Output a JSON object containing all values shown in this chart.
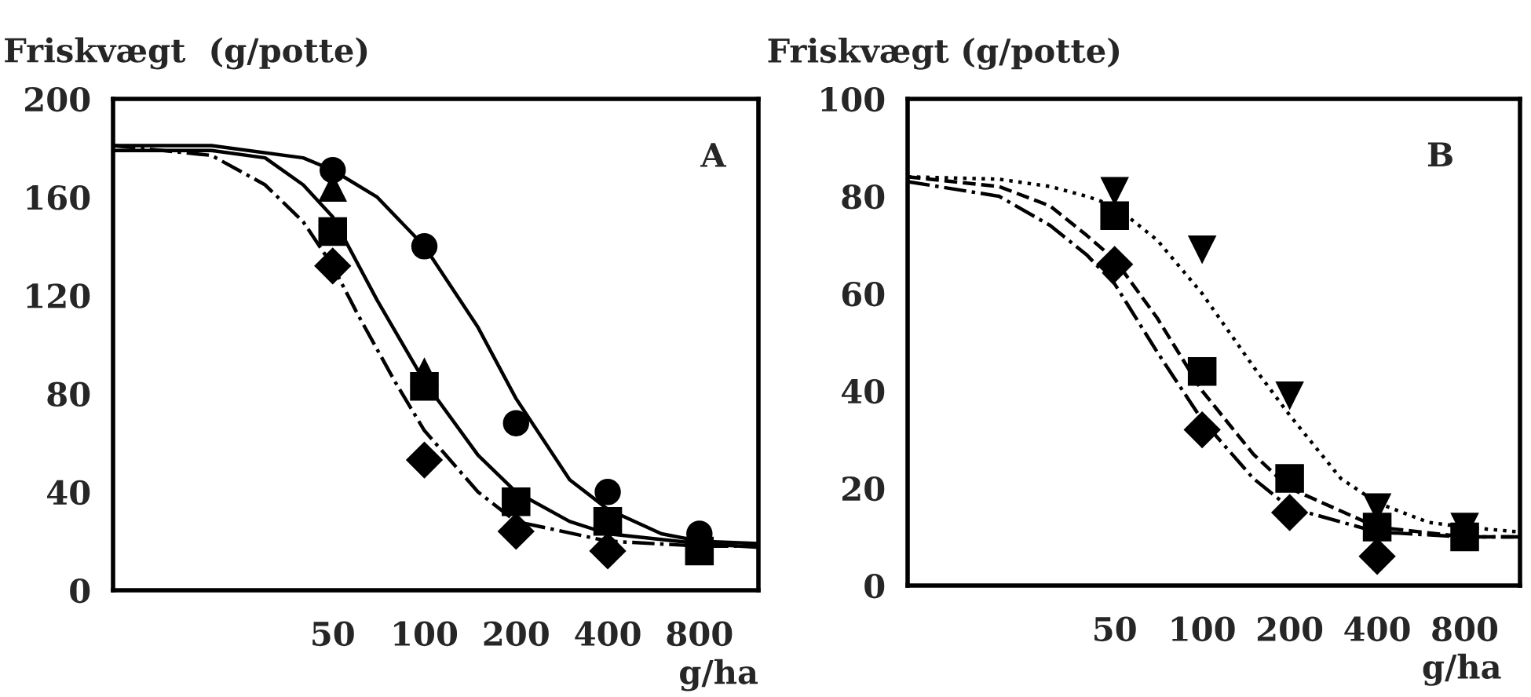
{
  "chart_data": [
    {
      "type": "scatter",
      "ylabel": "Friskvægt  (g/potte)",
      "xlabel": "g/ha",
      "annotations": [
        "A"
      ],
      "log": "x",
      "xlim": [
        9.5,
        1250
      ],
      "xticks": [
        50,
        100,
        200,
        400,
        800
      ],
      "ylim": [
        0,
        200
      ],
      "yticks": [
        0,
        40,
        80,
        120,
        160,
        200
      ],
      "grid": false,
      "legend": false,
      "series": [
        {
          "type": "line",
          "line_style": "solid",
          "marker": "none",
          "color": "#000000",
          "x": [
            9.5,
            20,
            40,
            50,
            70,
            100,
            150,
            200,
            300,
            400,
            600,
            800,
            1250
          ],
          "values": [
            181,
            181,
            176,
            171,
            160,
            140,
            107,
            78,
            45,
            33,
            23,
            20,
            19
          ]
        },
        {
          "type": "line",
          "line_style": "solid",
          "marker": "none",
          "color": "#000000",
          "x": [
            9.5,
            20,
            30,
            40,
            50,
            70,
            100,
            150,
            200,
            300,
            400,
            800,
            1250
          ],
          "values": [
            179,
            179,
            176,
            165,
            152,
            118,
            85,
            55,
            40,
            28,
            23,
            19,
            17.5
          ]
        },
        {
          "type": "line",
          "line_style": "dashdot",
          "marker": "none",
          "color": "#000000",
          "x": [
            9.5,
            20,
            30,
            40,
            50,
            60,
            80,
            100,
            150,
            200,
            400,
            800,
            1250
          ],
          "values": [
            181,
            177,
            165,
            150,
            132,
            113,
            85,
            65,
            40,
            28,
            20,
            18,
            18
          ]
        },
        {
          "marker": "circle",
          "color": "#000000",
          "x": [
            50,
            100,
            200,
            400,
            800
          ],
          "values": [
            171,
            140,
            68,
            40,
            23
          ]
        },
        {
          "marker": "triangle",
          "color": "#000000",
          "x": [
            50,
            100
          ],
          "values": [
            164,
            89
          ]
        },
        {
          "marker": "square",
          "color": "#000000",
          "x": [
            50,
            100,
            200,
            400,
            800
          ],
          "values": [
            146,
            83,
            36,
            28,
            16
          ]
        },
        {
          "marker": "diamond",
          "color": "#000000",
          "x": [
            50,
            100,
            200,
            400
          ],
          "values": [
            132,
            53,
            24,
            16
          ]
        }
      ]
    },
    {
      "type": "scatter",
      "ylabel": "Friskvægt (g/potte)",
      "xlabel": "g/ha",
      "annotations": [
        "B"
      ],
      "log": "x",
      "xlim": [
        9.7,
        1240
      ],
      "xticks": [
        50,
        100,
        200,
        400,
        800
      ],
      "ylim": [
        0,
        100
      ],
      "yticks": [
        0,
        20,
        40,
        60,
        80,
        100
      ],
      "grid": false,
      "legend": false,
      "series": [
        {
          "type": "line",
          "line_style": "dotted",
          "marker": "none",
          "color": "#000000",
          "x": [
            9.7,
            20,
            30,
            40,
            50,
            70,
            100,
            150,
            200,
            300,
            400,
            600,
            800,
            1240
          ],
          "values": [
            84,
            83.5,
            82,
            80,
            78,
            71,
            60,
            45,
            35,
            22,
            17,
            13,
            12,
            11
          ]
        },
        {
          "type": "line",
          "line_style": "dashed",
          "marker": "none",
          "color": "#000000",
          "x": [
            9.7,
            20,
            30,
            40,
            50,
            70,
            100,
            150,
            200,
            400,
            800,
            1240
          ],
          "values": [
            84,
            82,
            78,
            72,
            67,
            55,
            40,
            27,
            20,
            12,
            10,
            10
          ]
        },
        {
          "type": "line",
          "line_style": "dashdot",
          "marker": "none",
          "color": "#000000",
          "x": [
            9.7,
            20,
            30,
            40,
            50,
            70,
            100,
            150,
            200,
            400,
            800,
            1240
          ],
          "values": [
            83,
            80,
            74,
            68,
            62,
            48,
            34,
            22,
            16,
            11,
            10,
            10
          ]
        },
        {
          "marker": "triangle_down",
          "color": "#000000",
          "x": [
            50,
            100,
            200,
            400,
            800
          ],
          "values": [
            81,
            69,
            39,
            16,
            12
          ]
        },
        {
          "marker": "square",
          "color": "#000000",
          "x": [
            50,
            100,
            200,
            400,
            800
          ],
          "values": [
            76,
            44,
            22,
            12,
            10
          ]
        },
        {
          "marker": "diamond",
          "color": "#000000",
          "x": [
            50,
            100,
            200,
            400
          ],
          "values": [
            66,
            32,
            15,
            6
          ]
        }
      ]
    }
  ]
}
